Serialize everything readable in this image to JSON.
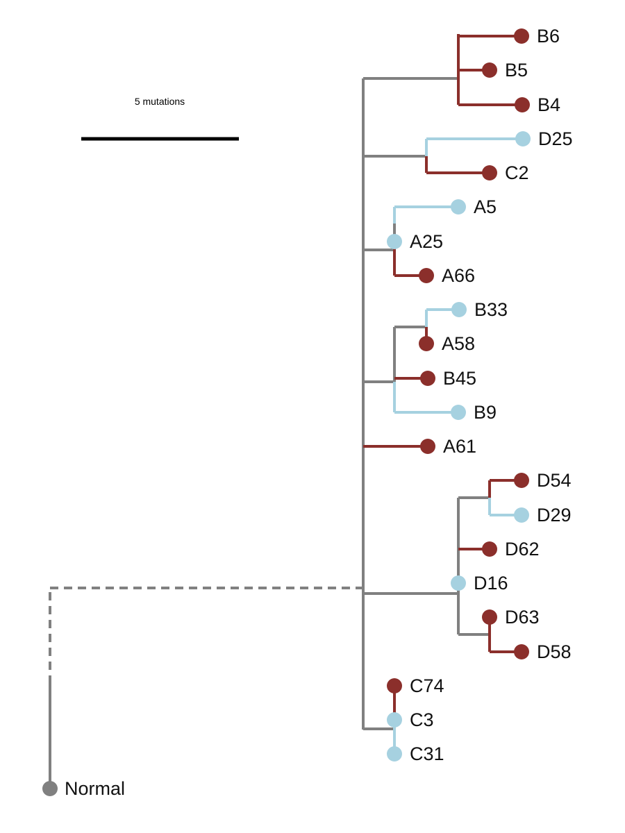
{
  "colors": {
    "trunk": "#808080",
    "red": "#8b2f2b",
    "blue": "#a6d1e0",
    "scale": "#000000"
  },
  "scale_bar": {
    "label": "5 mutations"
  },
  "root": {
    "label": "Normal"
  },
  "leaves": [
    {
      "label": "B6",
      "color": "red"
    },
    {
      "label": "B5",
      "color": "red"
    },
    {
      "label": "B4",
      "color": "red"
    },
    {
      "label": "D25",
      "color": "blue"
    },
    {
      "label": "C2",
      "color": "red"
    },
    {
      "label": "A5",
      "color": "blue"
    },
    {
      "label": "A25",
      "color": "blue"
    },
    {
      "label": "A66",
      "color": "red"
    },
    {
      "label": "B33",
      "color": "blue"
    },
    {
      "label": "A58",
      "color": "red"
    },
    {
      "label": "B45",
      "color": "red"
    },
    {
      "label": "B9",
      "color": "blue"
    },
    {
      "label": "A61",
      "color": "red"
    },
    {
      "label": "D54",
      "color": "red"
    },
    {
      "label": "D29",
      "color": "blue"
    },
    {
      "label": "D62",
      "color": "red"
    },
    {
      "label": "D16",
      "color": "blue"
    },
    {
      "label": "D63",
      "color": "red"
    },
    {
      "label": "D58",
      "color": "red"
    },
    {
      "label": "C74",
      "color": "red"
    },
    {
      "label": "C3",
      "color": "blue"
    },
    {
      "label": "C31",
      "color": "blue"
    }
  ]
}
